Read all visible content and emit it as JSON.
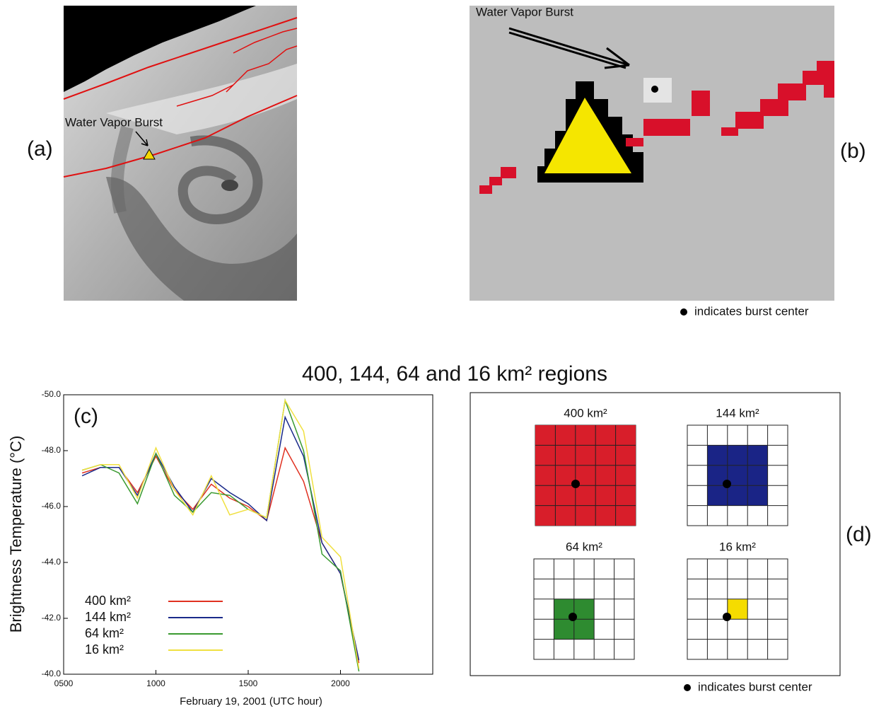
{
  "figure_title": "400, 144, 64 and 16 km² regions",
  "panels": {
    "a": {
      "label": "(a)",
      "annotation": "Water Vapor Burst"
    },
    "b": {
      "label": "(b)",
      "annotation": "Water Vapor Burst",
      "note": "indicates burst center"
    },
    "d": {
      "label": "(d)",
      "grids": [
        "400 km²",
        "144 km²",
        "64 km²",
        "16 km²"
      ],
      "note": "indicates burst center"
    }
  },
  "chart_data": {
    "type": "line",
    "label": "(c)",
    "xlabel": "February 19, 2001 (UTC hour)",
    "ylabel": "Brightness Temperature (°C)",
    "x": [
      600,
      700,
      800,
      900,
      1000,
      1100,
      1200,
      1300,
      1400,
      1500,
      1600,
      1700,
      1800,
      1900,
      2000,
      2100
    ],
    "xlim": [
      500,
      2500
    ],
    "xticks": [
      {
        "value": 500,
        "label": "0500"
      },
      1000,
      1500,
      2000
    ],
    "ylim": [
      -40,
      -50
    ],
    "yticks": [
      {
        "value": -50,
        "label": "-50.0"
      },
      {
        "value": -48,
        "label": "-48.0"
      },
      {
        "value": -46,
        "label": "-46.0"
      },
      {
        "value": -44,
        "label": "-44.0"
      },
      {
        "value": -42,
        "label": "-42.0"
      },
      {
        "value": -40,
        "label": "-40.0"
      }
    ],
    "series": [
      {
        "name": "400 km²",
        "color": "#e03020",
        "values": [
          -47.2,
          -47.4,
          -47.4,
          -46.5,
          -47.8,
          -46.6,
          -45.9,
          -46.8,
          -46.3,
          -46.0,
          -45.5,
          -48.1,
          -46.9,
          -44.7,
          -43.6,
          -40.4
        ]
      },
      {
        "name": "144 km²",
        "color": "#1a2a8a",
        "values": [
          -47.1,
          -47.4,
          -47.4,
          -46.4,
          -47.9,
          -46.7,
          -45.8,
          -47.0,
          -46.5,
          -46.1,
          -45.5,
          -49.2,
          -47.8,
          -44.7,
          -43.6,
          -40.5
        ]
      },
      {
        "name": "64 km²",
        "color": "#3a9a30",
        "values": [
          -47.3,
          -47.5,
          -47.2,
          -46.1,
          -47.9,
          -46.4,
          -45.8,
          -46.5,
          -46.4,
          -45.9,
          -45.6,
          -49.8,
          -48.0,
          -44.3,
          -43.7,
          -40.1
        ]
      },
      {
        "name": "16 km²",
        "color": "#f0e040",
        "values": [
          -47.3,
          -47.5,
          -47.5,
          -46.3,
          -48.1,
          -46.6,
          -45.7,
          -47.1,
          -45.7,
          -45.9,
          -45.6,
          -49.8,
          -48.7,
          -44.9,
          -44.2,
          -40.2
        ]
      }
    ]
  }
}
